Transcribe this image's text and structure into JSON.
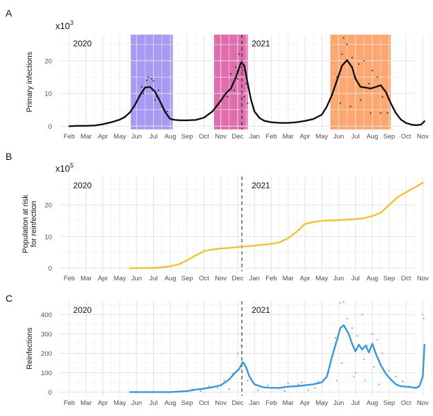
{
  "colors": {
    "primary": "#111111",
    "population": "#f2c12e",
    "reinfection": "#3498db",
    "shade_wave1": "#8a77f0",
    "shade_wave2": "#d63d93",
    "shade_wave3": "#ff8a3d"
  },
  "chart_data": [
    {
      "panel": "A",
      "type": "line",
      "multiplier": "x10",
      "multiplier_exp": "3",
      "ylabel": "Primary infections",
      "ylim": [
        -1,
        28
      ],
      "yticks": [
        "0",
        "10",
        "20"
      ],
      "x_categories": [
        "Feb",
        "Mar",
        "Apr",
        "May",
        "Jun",
        "Jul",
        "Aug",
        "Sep",
        "Oct",
        "Nov",
        "Dec",
        "Jan",
        "Feb",
        "Mar",
        "Apr",
        "May",
        "Jun",
        "Jul",
        "Aug",
        "Sep",
        "Oct",
        "Nov",
        "Dec"
      ],
      "year_labels": [
        {
          "text": "2020",
          "month_index": 0.15
        },
        {
          "text": "2021",
          "month_index": 10.75
        }
      ],
      "vline_month_index": 10.25,
      "shaded_periods": [
        {
          "start": 3.65,
          "end": 6.15,
          "color_key": "shade_wave1"
        },
        {
          "start": 8.6,
          "end": 10.6,
          "color_key": "shade_wave2"
        },
        {
          "start": 15.5,
          "end": 19.1,
          "color_key": "shade_wave3"
        }
      ],
      "series": [
        {
          "color_key": "primary",
          "x": [
            0,
            0.5,
            1,
            1.5,
            2,
            2.5,
            3,
            3.3,
            3.6,
            3.9,
            4.2,
            4.5,
            4.8,
            5.1,
            5.4,
            5.7,
            6,
            6.3,
            6.6,
            7,
            7.5,
            8,
            8.5,
            9,
            9.3,
            9.6,
            9.9,
            10.2,
            10.4,
            10.6,
            10.8,
            11,
            11.3,
            11.6,
            12,
            12.5,
            13,
            13.5,
            14,
            14.5,
            15,
            15.3,
            15.6,
            15.9,
            16.2,
            16.5,
            16.8,
            17,
            17.3,
            17.6,
            17.9,
            18.2,
            18.5,
            18.8,
            19.1,
            19.4,
            19.7,
            20,
            20.3,
            20.6,
            20.9,
            21.1
          ],
          "y": [
            0,
            0.1,
            0.1,
            0.2,
            0.6,
            1.2,
            2,
            2.8,
            4.2,
            6.5,
            9.5,
            11.8,
            12,
            10.5,
            7.5,
            4.3,
            2.2,
            1.9,
            1.8,
            1.8,
            1.9,
            2.6,
            4.5,
            7.8,
            10,
            11.5,
            15,
            19.5,
            18.5,
            13,
            8,
            4.5,
            2.5,
            1.6,
            1.2,
            1,
            1,
            1.2,
            1.6,
            2.2,
            3.5,
            6,
            9.5,
            14,
            18.5,
            20.2,
            18,
            14.5,
            12,
            11.8,
            11.5,
            12,
            12.5,
            10.5,
            7,
            4,
            2,
            1,
            0.5,
            0.3,
            0.5,
            1.5
          ]
        }
      ],
      "scatter": [
        {
          "x": [
            4.3,
            4.7,
            5.0,
            5.3,
            4.6,
            5.1,
            5.5,
            5.8,
            4.9,
            5.2,
            4.4,
            5.6
          ],
          "y": [
            12,
            15,
            13.8,
            11,
            14,
            8,
            6,
            4.5,
            14.5,
            9,
            10,
            5
          ]
        },
        {
          "x": [
            9.6,
            9.9,
            10.1,
            10.3,
            10.5,
            10.0,
            9.8,
            10.4,
            10.6,
            9.4
          ],
          "y": [
            16,
            18,
            22,
            17,
            13,
            14.5,
            11,
            9,
            7,
            9
          ]
        },
        {
          "x": [
            15.9,
            16.2,
            16.3,
            16.5,
            16.8,
            17.0,
            17.2,
            17.5,
            17.8,
            18.0,
            18.3,
            18.6,
            18.9,
            16.1,
            16.7,
            17.3,
            17.9,
            18.5
          ],
          "y": [
            15,
            22,
            27,
            25,
            21,
            15,
            19,
            20,
            13,
            17,
            15,
            9,
            4,
            7,
            6,
            8,
            4,
            4
          ]
        }
      ]
    },
    {
      "panel": "B",
      "type": "line",
      "multiplier": "x10",
      "multiplier_exp": "5",
      "ylabel_lines": [
        "Population at risk",
        "for reinfection"
      ],
      "ylim": [
        -1,
        29
      ],
      "yticks": [
        "0",
        "10",
        "20"
      ],
      "x_categories": [
        "Feb",
        "Mar",
        "Apr",
        "May",
        "Jun",
        "Jul",
        "Aug",
        "Sep",
        "Oct",
        "Nov",
        "Dec",
        "Jan",
        "Feb",
        "Mar",
        "Apr",
        "May",
        "Jun",
        "Jul",
        "Aug",
        "Sep",
        "Oct",
        "Nov",
        "Dec"
      ],
      "year_labels": [
        {
          "text": "2020",
          "month_index": 0.15
        },
        {
          "text": "2021",
          "month_index": 10.75
        }
      ],
      "vline_month_index": 10.25,
      "shaded_periods": [],
      "series": [
        {
          "color_key": "population",
          "x": [
            3.6,
            4,
            4.5,
            5,
            5.5,
            6,
            6.5,
            7,
            7.5,
            8,
            8.5,
            9,
            9.5,
            10,
            10.5,
            11,
            11.5,
            12,
            12.5,
            13,
            13.5,
            14,
            14.5,
            15,
            16,
            17,
            17.5,
            18,
            18.5,
            19,
            19.5,
            20,
            20.5,
            21
          ],
          "y": [
            0,
            0,
            0.05,
            0.1,
            0.3,
            0.6,
            1.2,
            2.5,
            4,
            5.4,
            5.9,
            6.2,
            6.4,
            6.7,
            6.9,
            7.1,
            7.4,
            7.7,
            8.2,
            9.5,
            11.5,
            14,
            14.6,
            15,
            15.2,
            15.5,
            15.8,
            16.5,
            17.5,
            20,
            22.5,
            24,
            25.5,
            27
          ]
        }
      ],
      "scatter": []
    },
    {
      "panel": "C",
      "type": "line",
      "ylabel": "Reinfections",
      "ylim": [
        -20,
        470
      ],
      "yticks": [
        "0",
        "100",
        "200",
        "300",
        "400"
      ],
      "x_categories": [
        "Feb",
        "Mar",
        "Apr",
        "May",
        "Jun",
        "Jul",
        "Aug",
        "Sep",
        "Oct",
        "Nov",
        "Dec",
        "Jan",
        "Feb",
        "Mar",
        "Apr",
        "May",
        "Jun",
        "Jul",
        "Aug",
        "Sep",
        "Oct",
        "Nov",
        "Dec"
      ],
      "year_labels": [
        {
          "text": "2020",
          "month_index": 0.15
        },
        {
          "text": "2021",
          "month_index": 10.75
        }
      ],
      "vline_month_index": 10.25,
      "shaded_periods": [],
      "series": [
        {
          "color_key": "reinfection",
          "x": [
            3.6,
            4,
            5,
            6,
            6.5,
            7,
            7.5,
            8,
            8.5,
            9,
            9.5,
            9.8,
            10.1,
            10.3,
            10.5,
            10.7,
            11,
            11.5,
            12,
            12.5,
            13,
            13.5,
            14,
            14.5,
            15,
            15.3,
            15.6,
            15.9,
            16.1,
            16.3,
            16.6,
            16.8,
            17,
            17.2,
            17.4,
            17.6,
            17.8,
            18,
            18.2,
            18.5,
            18.8,
            19.1,
            19.4,
            19.7,
            20,
            20.3,
            20.6,
            20.8,
            21,
            21.1
          ],
          "y": [
            0,
            0,
            0,
            0,
            2,
            5,
            12,
            18,
            25,
            35,
            65,
            95,
            120,
            155,
            130,
            80,
            40,
            25,
            22,
            22,
            28,
            30,
            35,
            40,
            50,
            80,
            180,
            270,
            330,
            345,
            300,
            250,
            210,
            245,
            220,
            240,
            205,
            250,
            200,
            140,
            95,
            65,
            40,
            30,
            28,
            25,
            22,
            30,
            80,
            245
          ]
        }
      ],
      "scatter": [
        {
          "x": [
            7.3,
            7.8,
            8.3,
            8.8,
            9.2,
            9.7,
            10.0,
            10.2,
            10.4,
            10.6,
            11.2,
            11.8,
            12.4,
            13.0,
            13.6,
            14.2,
            14.8,
            15.4,
            15.8,
            16.1,
            16.3,
            16.5,
            16.8,
            17.1,
            17.4,
            17.7,
            18.0,
            18.3,
            18.6,
            19.0,
            19.4,
            19.8,
            20.2,
            20.6,
            21.0,
            21.05,
            16.2,
            17.0,
            17.5,
            18.1,
            15.9,
            16.9,
            17.6,
            18.4,
            12.8,
            13.8,
            14.6,
            9.5
          ],
          "y": [
            15,
            5,
            30,
            20,
            60,
            95,
            200,
            240,
            150,
            60,
            10,
            35,
            18,
            45,
            40,
            10,
            55,
            100,
            280,
            460,
            465,
            380,
            330,
            290,
            400,
            240,
            300,
            270,
            200,
            110,
            80,
            55,
            30,
            20,
            400,
            380,
            150,
            100,
            170,
            130,
            60,
            80,
            60,
            40,
            5,
            50,
            20,
            15
          ]
        }
      ]
    }
  ]
}
